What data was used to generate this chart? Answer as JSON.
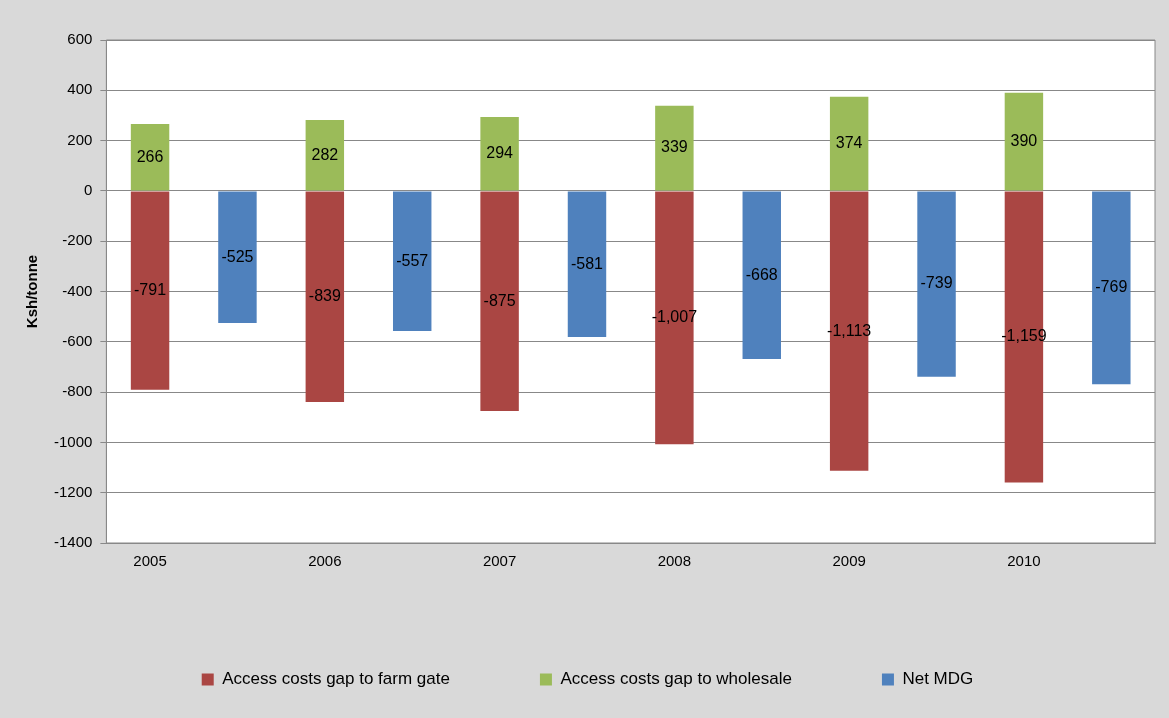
{
  "chart_data": {
    "type": "bar",
    "stacked": true,
    "ylabel": "Ksh/tonne",
    "categories": [
      "2005",
      null,
      "2006",
      null,
      "2007",
      null,
      "2008",
      null,
      "2009",
      null,
      "2010",
      null
    ],
    "series": [
      {
        "name": "Access costs gap to farm gate",
        "color": "#aa4643",
        "values": [
          -791,
          null,
          -839,
          null,
          -875,
          null,
          -1007,
          null,
          -1113,
          null,
          -1159,
          null
        ],
        "value_labels": [
          "-791",
          null,
          "-839",
          null,
          "-875",
          null,
          "-1,007",
          null,
          "-1,113",
          null,
          "-1,159",
          null
        ]
      },
      {
        "name": "Access costs gap to wholesale",
        "color": "#9bbb59",
        "values": [
          266,
          null,
          282,
          null,
          294,
          null,
          339,
          null,
          374,
          null,
          390,
          null
        ],
        "value_labels": [
          "266",
          null,
          "282",
          null,
          "294",
          null,
          "339",
          null,
          "374",
          null,
          "390",
          null
        ]
      },
      {
        "name": "Net MDG",
        "color": "#4f81bd",
        "values": [
          null,
          -525,
          null,
          -557,
          null,
          -581,
          null,
          -668,
          null,
          -739,
          null,
          -769
        ],
        "value_labels": [
          null,
          "-525",
          null,
          "-557",
          null,
          "-581",
          null,
          "-668",
          null,
          "-739",
          null,
          "-769"
        ]
      }
    ],
    "ylim": [
      -1400,
      600
    ],
    "yticks": [
      -1400,
      -1200,
      -1000,
      -800,
      -600,
      -400,
      -200,
      0,
      200,
      400,
      600
    ],
    "grid": "y",
    "legend": "bottom"
  }
}
